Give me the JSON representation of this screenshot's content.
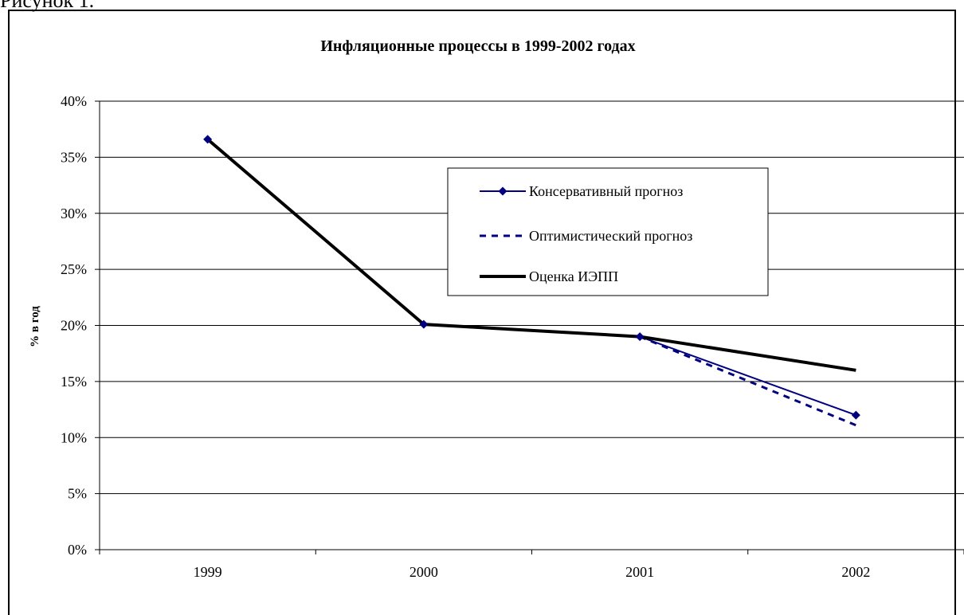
{
  "page_caption": "Рисунок 1.",
  "chart_data": {
    "type": "line",
    "title": "Инфляционные процессы в 1999-2002 годах",
    "xlabel": "",
    "ylabel": "% в год",
    "categories": [
      "1999",
      "2000",
      "2001",
      "2002"
    ],
    "ylim": [
      0,
      40
    ],
    "yticks": [
      "0%",
      "5%",
      "10%",
      "15%",
      "20%",
      "25%",
      "30%",
      "35%",
      "40%"
    ],
    "grid": "horizontal",
    "legend_position": "center-right",
    "series": [
      {
        "name": "Консервативный прогноз",
        "values": [
          36.6,
          20.1,
          19.0,
          12.0
        ],
        "color": "#000080",
        "style": "solid-diamond"
      },
      {
        "name": "Оптимистический прогноз",
        "values": [
          null,
          null,
          19.0,
          11.1
        ],
        "color": "#000080",
        "style": "dashed"
      },
      {
        "name": "Оценка ИЭПП",
        "values": [
          36.6,
          20.1,
          19.0,
          16.0
        ],
        "color": "#000000",
        "style": "solid-thick"
      }
    ]
  }
}
